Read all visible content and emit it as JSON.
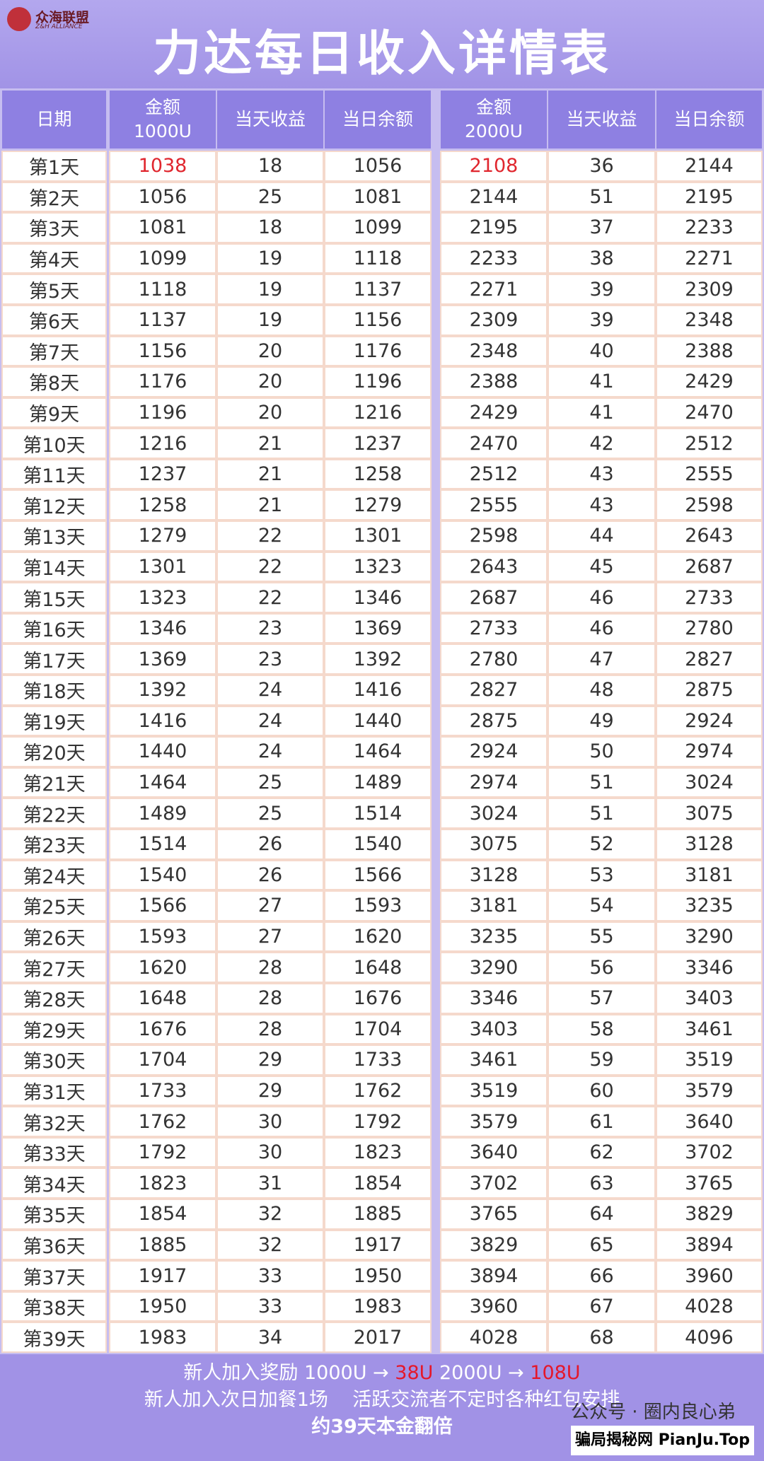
{
  "header": {
    "logo_name": "众海联盟",
    "logo_sub": "Z&H ALLIANCE",
    "title": "力达每日收入详情表"
  },
  "table": {
    "columns": [
      [
        "日期"
      ],
      [
        "金额",
        "1000U"
      ],
      [
        "当天收益"
      ],
      [
        "当日余额"
      ],
      [
        "金额",
        "2000U"
      ],
      [
        "当天收益"
      ],
      [
        "当日余额"
      ]
    ],
    "rows": [
      [
        "第1天",
        1038,
        18,
        1056,
        2108,
        36,
        2144
      ],
      [
        "第2天",
        1056,
        25,
        1081,
        2144,
        51,
        2195
      ],
      [
        "第3天",
        1081,
        18,
        1099,
        2195,
        37,
        2233
      ],
      [
        "第4天",
        1099,
        19,
        1118,
        2233,
        38,
        2271
      ],
      [
        "第5天",
        1118,
        19,
        1137,
        2271,
        39,
        2309
      ],
      [
        "第6天",
        1137,
        19,
        1156,
        2309,
        39,
        2348
      ],
      [
        "第7天",
        1156,
        20,
        1176,
        2348,
        40,
        2388
      ],
      [
        "第8天",
        1176,
        20,
        1196,
        2388,
        41,
        2429
      ],
      [
        "第9天",
        1196,
        20,
        1216,
        2429,
        41,
        2470
      ],
      [
        "第10天",
        1216,
        21,
        1237,
        2470,
        42,
        2512
      ],
      [
        "第11天",
        1237,
        21,
        1258,
        2512,
        43,
        2555
      ],
      [
        "第12天",
        1258,
        21,
        1279,
        2555,
        43,
        2598
      ],
      [
        "第13天",
        1279,
        22,
        1301,
        2598,
        44,
        2643
      ],
      [
        "第14天",
        1301,
        22,
        1323,
        2643,
        45,
        2687
      ],
      [
        "第15天",
        1323,
        22,
        1346,
        2687,
        46,
        2733
      ],
      [
        "第16天",
        1346,
        23,
        1369,
        2733,
        46,
        2780
      ],
      [
        "第17天",
        1369,
        23,
        1392,
        2780,
        47,
        2827
      ],
      [
        "第18天",
        1392,
        24,
        1416,
        2827,
        48,
        2875
      ],
      [
        "第19天",
        1416,
        24,
        1440,
        2875,
        49,
        2924
      ],
      [
        "第20天",
        1440,
        24,
        1464,
        2924,
        50,
        2974
      ],
      [
        "第21天",
        1464,
        25,
        1489,
        2974,
        51,
        3024
      ],
      [
        "第22天",
        1489,
        25,
        1514,
        3024,
        51,
        3075
      ],
      [
        "第23天",
        1514,
        26,
        1540,
        3075,
        52,
        3128
      ],
      [
        "第24天",
        1540,
        26,
        1566,
        3128,
        53,
        3181
      ],
      [
        "第25天",
        1566,
        27,
        1593,
        3181,
        54,
        3235
      ],
      [
        "第26天",
        1593,
        27,
        1620,
        3235,
        55,
        3290
      ],
      [
        "第27天",
        1620,
        28,
        1648,
        3290,
        56,
        3346
      ],
      [
        "第28天",
        1648,
        28,
        1676,
        3346,
        57,
        3403
      ],
      [
        "第29天",
        1676,
        28,
        1704,
        3403,
        58,
        3461
      ],
      [
        "第30天",
        1704,
        29,
        1733,
        3461,
        59,
        3519
      ],
      [
        "第31天",
        1733,
        29,
        1762,
        3519,
        60,
        3579
      ],
      [
        "第32天",
        1762,
        30,
        1792,
        3579,
        61,
        3640
      ],
      [
        "第33天",
        1792,
        30,
        1823,
        3640,
        62,
        3702
      ],
      [
        "第34天",
        1823,
        31,
        1854,
        3702,
        63,
        3765
      ],
      [
        "第35天",
        1854,
        32,
        1885,
        3765,
        64,
        3829
      ],
      [
        "第36天",
        1885,
        32,
        1917,
        3829,
        65,
        3894
      ],
      [
        "第37天",
        1917,
        33,
        1950,
        3894,
        66,
        3960
      ],
      [
        "第38天",
        1950,
        33,
        1983,
        3960,
        67,
        4028
      ],
      [
        "第39天",
        1983,
        34,
        2017,
        4028,
        68,
        4096
      ]
    ]
  },
  "footer": {
    "line1": [
      "新人加入奖励  1000U → ",
      "38U",
      "   2000U → ",
      "108U"
    ],
    "line2": "新人加入次日加餐1场    活跃交流者不定时各种红包安排",
    "line3": "约39天本金翻倍",
    "watermark1": "公众号 · 圈内良心弟",
    "watermark2": "骗局揭秘网 PianJu.Top"
  }
}
